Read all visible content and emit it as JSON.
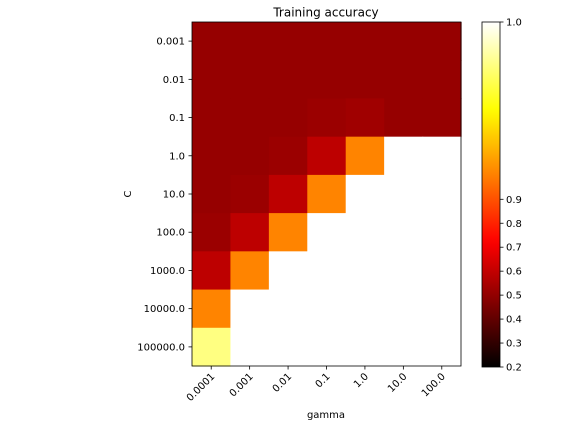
{
  "chart_data": {
    "type": "heatmap",
    "title": "Training accuracy",
    "xlabel": "gamma",
    "ylabel": "C",
    "x_categories": [
      "0.0001",
      "0.001",
      "0.01",
      "0.1",
      "1.0",
      "10.0",
      "100.0"
    ],
    "y_categories": [
      "0.001",
      "0.01",
      "0.1",
      "1.0",
      "10.0",
      "100.0",
      "1000.0",
      "10000.0",
      "100000.0"
    ],
    "values": [
      [
        0.51,
        0.51,
        0.51,
        0.51,
        0.51,
        0.51,
        0.51
      ],
      [
        0.51,
        0.51,
        0.51,
        0.51,
        0.51,
        0.51,
        0.51
      ],
      [
        0.51,
        0.51,
        0.51,
        0.52,
        0.53,
        0.51,
        0.51
      ],
      [
        0.51,
        0.51,
        0.52,
        0.59,
        0.93,
        1.0,
        1.0
      ],
      [
        0.51,
        0.52,
        0.59,
        0.93,
        1.0,
        1.0,
        1.0
      ],
      [
        0.52,
        0.59,
        0.93,
        1.0,
        1.0,
        1.0,
        1.0
      ],
      [
        0.59,
        0.93,
        1.0,
        1.0,
        1.0,
        1.0,
        1.0
      ],
      [
        0.93,
        1.0,
        1.0,
        1.0,
        1.0,
        1.0,
        1.0
      ],
      [
        0.98,
        1.0,
        1.0,
        1.0,
        1.0,
        1.0,
        1.0
      ]
    ],
    "colormap": "hot",
    "colorbar": {
      "vmin": 0.2,
      "vmax": 1.0,
      "midpoint": 0.92,
      "ticks": [
        0.2,
        0.3,
        0.4,
        0.5,
        0.6,
        0.7,
        0.8,
        0.9,
        1.0
      ],
      "tick_labels": [
        "0.2",
        "0.3",
        "0.4",
        "0.5",
        "0.6",
        "0.7",
        "0.8",
        "0.9",
        "1.0"
      ],
      "placement": "right"
    },
    "x_tick_rotation_deg": 45
  }
}
